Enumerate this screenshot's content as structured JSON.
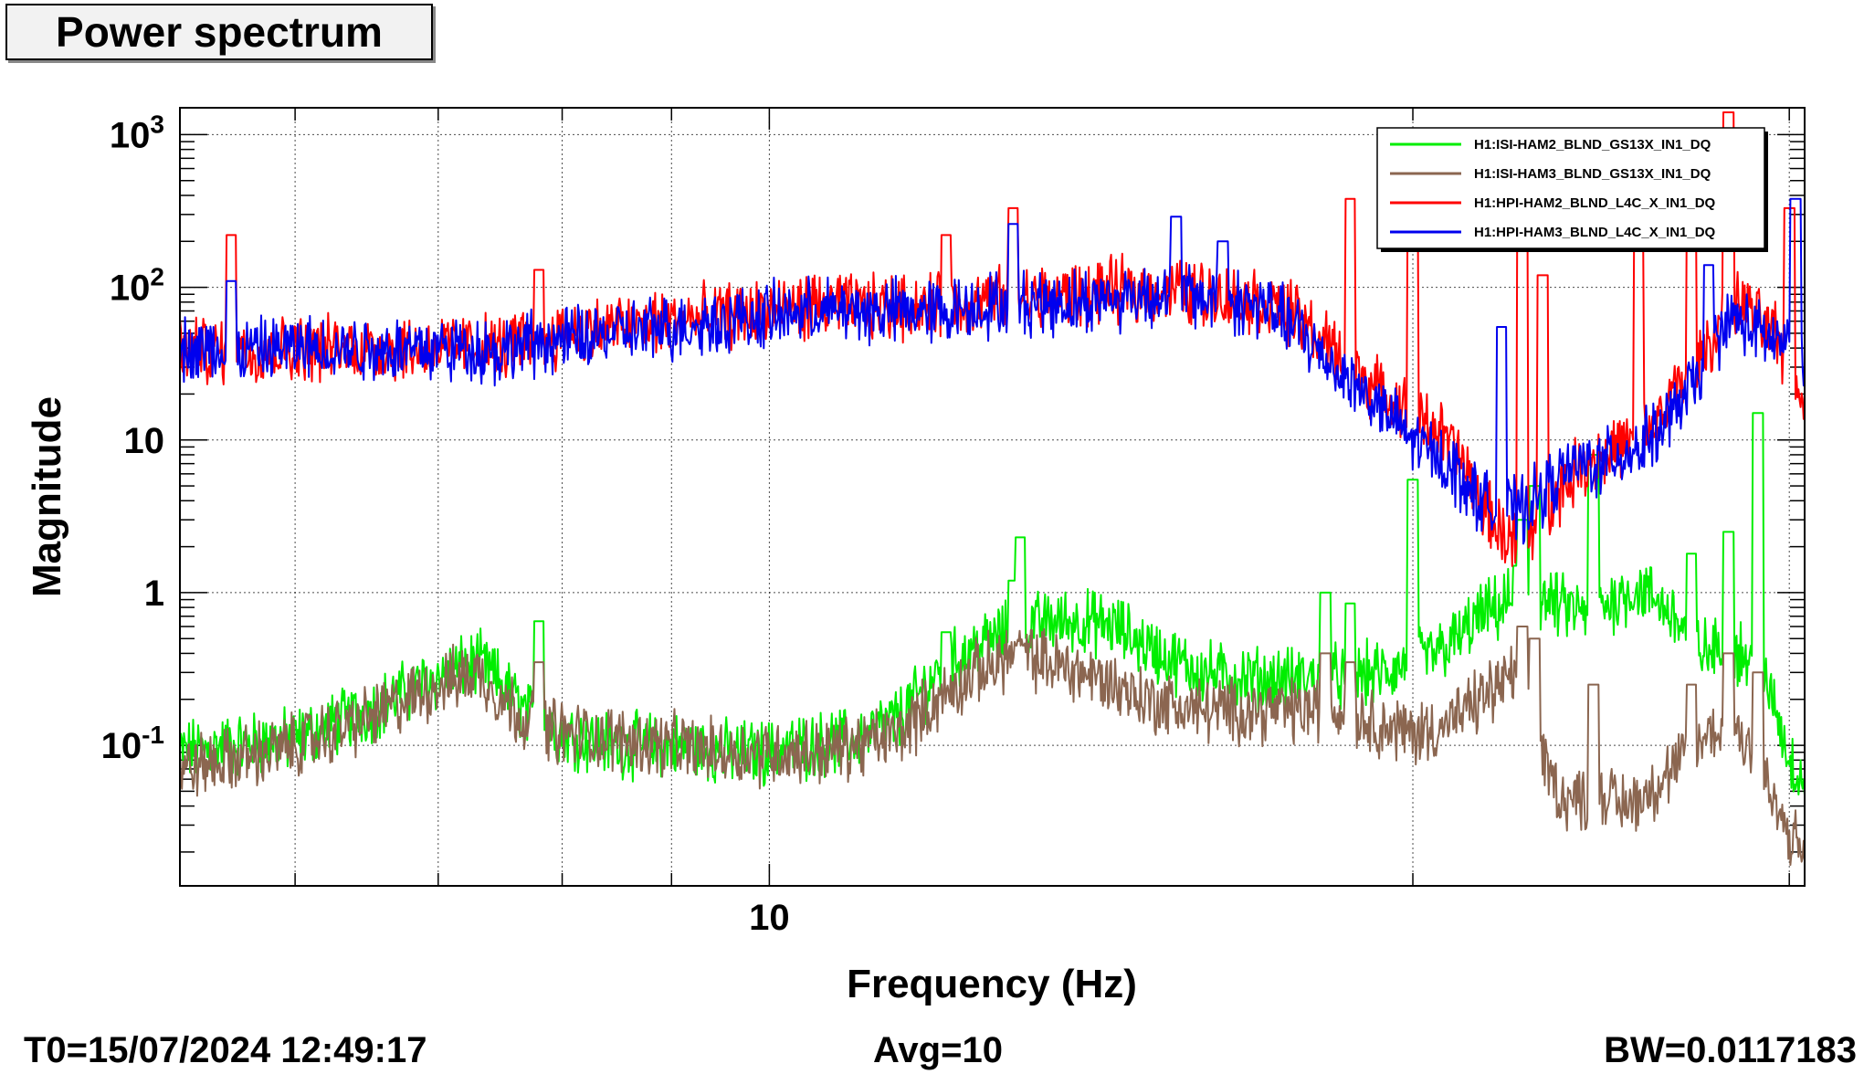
{
  "window_title": "Power spectrum",
  "footer": {
    "t0": "T0=15/07/2024 12:49:17",
    "avg": "Avg=10",
    "bw": "BW=0.0117183"
  },
  "chart_data": {
    "type": "line",
    "title": "Power spectrum",
    "xlabel": "Frequency (Hz)",
    "ylabel": "Magnitude",
    "x_scale": "log",
    "y_scale": "log",
    "xlim": [
      5.3,
      30.5
    ],
    "ylim": [
      0.012,
      1500
    ],
    "x_tick_labels": [
      {
        "value": 10,
        "label": "10"
      }
    ],
    "y_tick_labels": [
      {
        "value": 0.1,
        "label": "10^-1"
      },
      {
        "value": 1,
        "label": "1"
      },
      {
        "value": 10,
        "label": "10"
      },
      {
        "value": 100,
        "label": "10^2"
      },
      {
        "value": 1000,
        "label": "10^3"
      }
    ],
    "grid": true,
    "legend_position": "top-right",
    "series": [
      {
        "name": "H1:ISI-HAM2_BLND_GS13X_IN1_DQ",
        "color": "#00ee00",
        "points": [
          [
            5.3,
            0.09
          ],
          [
            5.6,
            0.1
          ],
          [
            6,
            0.11
          ],
          [
            6.5,
            0.17
          ],
          [
            7,
            0.28
          ],
          [
            7.3,
            0.35
          ],
          [
            7.5,
            0.25
          ],
          [
            7.7,
            0.16
          ],
          [
            8,
            0.12
          ],
          [
            8.5,
            0.1
          ],
          [
            9,
            0.1
          ],
          [
            9.5,
            0.09
          ],
          [
            10,
            0.09
          ],
          [
            10.5,
            0.1
          ],
          [
            11,
            0.11
          ],
          [
            11.5,
            0.15
          ],
          [
            12,
            0.3
          ],
          [
            12.5,
            0.45
          ],
          [
            13,
            0.55
          ],
          [
            13.5,
            0.65
          ],
          [
            14,
            0.65
          ],
          [
            14.5,
            0.6
          ],
          [
            15,
            0.45
          ],
          [
            15.5,
            0.35
          ],
          [
            16,
            0.3
          ],
          [
            16.5,
            0.28
          ],
          [
            17,
            0.27
          ],
          [
            17.5,
            0.27
          ],
          [
            18,
            0.28
          ],
          [
            18.5,
            0.28
          ],
          [
            19,
            0.29
          ],
          [
            19.5,
            0.3
          ],
          [
            20,
            0.35
          ],
          [
            20.5,
            0.4
          ],
          [
            21,
            0.5
          ],
          [
            21.5,
            0.7
          ],
          [
            22,
            0.8
          ],
          [
            22.5,
            1.0
          ],
          [
            23,
            0.9
          ],
          [
            23.5,
            0.8
          ],
          [
            24,
            0.75
          ],
          [
            24.5,
            0.8
          ],
          [
            25,
            0.95
          ],
          [
            25.5,
            1.05
          ],
          [
            26,
            0.9
          ],
          [
            26.5,
            0.7
          ],
          [
            27,
            0.5
          ],
          [
            27.5,
            0.4
          ],
          [
            28,
            0.45
          ],
          [
            28.5,
            0.4
          ],
          [
            29,
            0.3
          ],
          [
            29.5,
            0.2
          ],
          [
            30,
            0.08
          ],
          [
            30.5,
            0.06
          ]
        ],
        "peaks": [
          [
            7.8,
            0.65
          ],
          [
            12.1,
            0.55
          ],
          [
            13.0,
            1.2
          ],
          [
            13.1,
            2.3
          ],
          [
            18.2,
            1.0
          ],
          [
            18.7,
            0.85
          ],
          [
            20.0,
            5.5
          ],
          [
            22.4,
            1.5
          ],
          [
            22.5,
            3.0
          ],
          [
            22.8,
            5.0
          ],
          [
            24.3,
            8.0
          ],
          [
            27.0,
            1.8
          ],
          [
            28.1,
            2.5
          ],
          [
            29.0,
            15.0
          ]
        ]
      },
      {
        "name": "H1:ISI-HAM3_BLND_GS13X_IN1_DQ",
        "color": "#8b6650",
        "points": [
          [
            5.3,
            0.07
          ],
          [
            5.6,
            0.08
          ],
          [
            6,
            0.1
          ],
          [
            6.5,
            0.15
          ],
          [
            7,
            0.25
          ],
          [
            7.3,
            0.3
          ],
          [
            7.5,
            0.2
          ],
          [
            7.7,
            0.15
          ],
          [
            8,
            0.12
          ],
          [
            8.5,
            0.11
          ],
          [
            9,
            0.1
          ],
          [
            9.5,
            0.09
          ],
          [
            10,
            0.09
          ],
          [
            10.5,
            0.09
          ],
          [
            11,
            0.1
          ],
          [
            11.5,
            0.12
          ],
          [
            12,
            0.2
          ],
          [
            12.5,
            0.3
          ],
          [
            13,
            0.4
          ],
          [
            13.5,
            0.35
          ],
          [
            14,
            0.3
          ],
          [
            14.5,
            0.25
          ],
          [
            15,
            0.2
          ],
          [
            15.5,
            0.18
          ],
          [
            16,
            0.17
          ],
          [
            16.5,
            0.17
          ],
          [
            17,
            0.17
          ],
          [
            17.5,
            0.17
          ],
          [
            18,
            0.17
          ],
          [
            18.5,
            0.17
          ],
          [
            19,
            0.15
          ],
          [
            19.5,
            0.13
          ],
          [
            20,
            0.12
          ],
          [
            20.5,
            0.13
          ],
          [
            21,
            0.15
          ],
          [
            21.5,
            0.2
          ],
          [
            22,
            0.25
          ],
          [
            22.5,
            0.3
          ],
          [
            23,
            0.08
          ],
          [
            23.5,
            0.045
          ],
          [
            24,
            0.045
          ],
          [
            24.5,
            0.05
          ],
          [
            25,
            0.04
          ],
          [
            25.5,
            0.045
          ],
          [
            26,
            0.055
          ],
          [
            26.5,
            0.07
          ],
          [
            27,
            0.09
          ],
          [
            27.5,
            0.12
          ],
          [
            28,
            0.13
          ],
          [
            28.5,
            0.12
          ],
          [
            29,
            0.08
          ],
          [
            29.5,
            0.04
          ],
          [
            30,
            0.025
          ],
          [
            30.5,
            0.02
          ]
        ],
        "peaks": [
          [
            7.8,
            0.35
          ],
          [
            13.1,
            0.45
          ],
          [
            18.2,
            0.4
          ],
          [
            18.7,
            0.35
          ],
          [
            22.5,
            0.6
          ],
          [
            22.8,
            0.5
          ],
          [
            24.3,
            0.25
          ],
          [
            27.0,
            0.25
          ],
          [
            28.1,
            0.4
          ],
          [
            29.0,
            0.3
          ]
        ]
      },
      {
        "name": "H1:HPI-HAM2_BLND_L4C_X_IN1_DQ",
        "color": "#ff0000",
        "points": [
          [
            5.3,
            40
          ],
          [
            5.6,
            38
          ],
          [
            6,
            40
          ],
          [
            6.5,
            40
          ],
          [
            7,
            40
          ],
          [
            7.3,
            42
          ],
          [
            7.5,
            40
          ],
          [
            7.7,
            45
          ],
          [
            8,
            50
          ],
          [
            8.5,
            55
          ],
          [
            9,
            60
          ],
          [
            9.5,
            65
          ],
          [
            10,
            70
          ],
          [
            10.5,
            75
          ],
          [
            11,
            75
          ],
          [
            11.5,
            75
          ],
          [
            12,
            75
          ],
          [
            12.5,
            80
          ],
          [
            13,
            85
          ],
          [
            13.5,
            85
          ],
          [
            14,
            90
          ],
          [
            14.5,
            95
          ],
          [
            15,
            95
          ],
          [
            15.5,
            95
          ],
          [
            16,
            90
          ],
          [
            16.5,
            85
          ],
          [
            17,
            80
          ],
          [
            17.5,
            70
          ],
          [
            18,
            50
          ],
          [
            18.5,
            35
          ],
          [
            19,
            25
          ],
          [
            19.5,
            18
          ],
          [
            20,
            15
          ],
          [
            20.5,
            12
          ],
          [
            21,
            8
          ],
          [
            21.5,
            4
          ],
          [
            22,
            2.5
          ],
          [
            22.5,
            2.0
          ],
          [
            23,
            3.5
          ],
          [
            23.5,
            5
          ],
          [
            24,
            7
          ],
          [
            24.5,
            8
          ],
          [
            25,
            9
          ],
          [
            25.5,
            10
          ],
          [
            26,
            13
          ],
          [
            26.5,
            20
          ],
          [
            27,
            30
          ],
          [
            27.5,
            40
          ],
          [
            28,
            70
          ],
          [
            28.5,
            80
          ],
          [
            29,
            60
          ],
          [
            29.5,
            50
          ],
          [
            30,
            30
          ],
          [
            30.5,
            18
          ]
        ],
        "peaks": [
          [
            5.6,
            220
          ],
          [
            7.8,
            130
          ],
          [
            12.1,
            220
          ],
          [
            13.0,
            330
          ],
          [
            18.7,
            380
          ],
          [
            20.0,
            350
          ],
          [
            22.5,
            300
          ],
          [
            23.0,
            120
          ],
          [
            25.5,
            200
          ],
          [
            27.0,
            350
          ],
          [
            28.1,
            1400
          ],
          [
            30.0,
            330
          ]
        ]
      },
      {
        "name": "H1:HPI-HAM3_BLND_L4C_X_IN1_DQ",
        "color": "#0000ee",
        "points": [
          [
            5.3,
            40
          ],
          [
            5.6,
            38
          ],
          [
            6,
            40
          ],
          [
            6.5,
            40
          ],
          [
            7,
            40
          ],
          [
            7.3,
            40
          ],
          [
            7.5,
            38
          ],
          [
            7.7,
            42
          ],
          [
            8,
            45
          ],
          [
            8.5,
            50
          ],
          [
            9,
            55
          ],
          [
            9.5,
            60
          ],
          [
            10,
            65
          ],
          [
            10.5,
            70
          ],
          [
            11,
            70
          ],
          [
            11.5,
            70
          ],
          [
            12,
            70
          ],
          [
            12.5,
            75
          ],
          [
            13,
            80
          ],
          [
            13.5,
            80
          ],
          [
            14,
            80
          ],
          [
            14.5,
            85
          ],
          [
            15,
            90
          ],
          [
            15.5,
            90
          ],
          [
            16,
            85
          ],
          [
            16.5,
            80
          ],
          [
            17,
            75
          ],
          [
            17.5,
            60
          ],
          [
            18,
            40
          ],
          [
            18.5,
            28
          ],
          [
            19,
            20
          ],
          [
            19.5,
            14
          ],
          [
            20,
            10
          ],
          [
            20.5,
            8
          ],
          [
            21,
            6
          ],
          [
            21.5,
            4
          ],
          [
            22,
            3.5
          ],
          [
            22.5,
            3.5
          ],
          [
            23,
            4.5
          ],
          [
            23.5,
            6
          ],
          [
            24,
            7
          ],
          [
            24.5,
            7
          ],
          [
            25,
            8
          ],
          [
            25.5,
            9
          ],
          [
            26,
            11
          ],
          [
            26.5,
            15
          ],
          [
            27,
            22
          ],
          [
            27.5,
            35
          ],
          [
            28,
            60
          ],
          [
            28.5,
            60
          ],
          [
            29,
            50
          ],
          [
            29.5,
            45
          ],
          [
            30,
            40
          ],
          [
            30.5,
            30
          ]
        ],
        "peaks": [
          [
            5.6,
            110
          ],
          [
            13.0,
            260
          ],
          [
            15.5,
            290
          ],
          [
            16.3,
            200
          ],
          [
            22.0,
            55
          ],
          [
            27.5,
            140
          ],
          [
            30.2,
            380
          ]
        ]
      }
    ]
  }
}
